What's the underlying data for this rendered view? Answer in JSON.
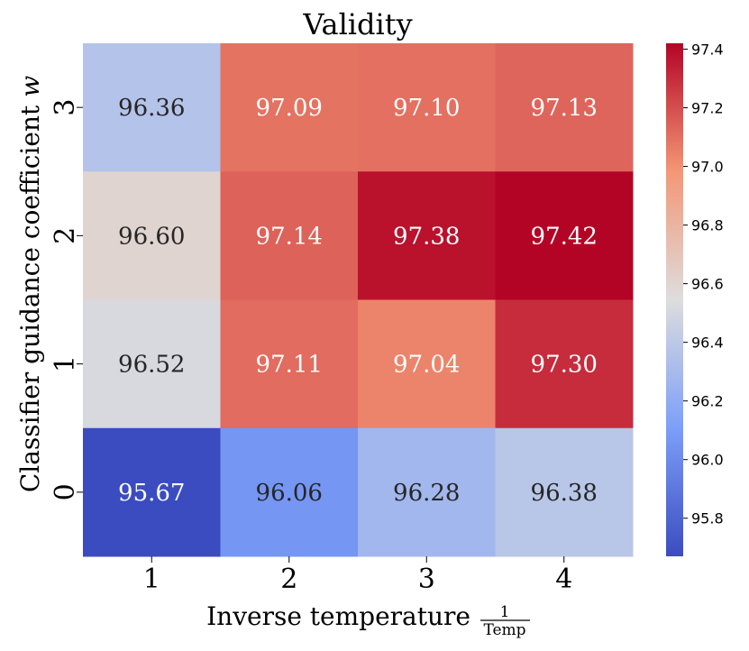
{
  "chart_data": {
    "type": "heatmap",
    "title": "Validity",
    "xlabel": "Inverse temperature",
    "xlabel_fraction": {
      "numerator": "1",
      "denominator": "Temp"
    },
    "ylabel": "Classifier guidance coefficient",
    "ylabel_symbol": "w",
    "x_categories": [
      "1",
      "2",
      "3",
      "4"
    ],
    "y_categories": [
      "3",
      "2",
      "1",
      "0"
    ],
    "values": [
      [
        96.36,
        97.09,
        97.1,
        97.13
      ],
      [
        96.6,
        97.14,
        97.38,
        97.42
      ],
      [
        96.52,
        97.11,
        97.04,
        97.3
      ],
      [
        95.67,
        96.06,
        96.28,
        96.38
      ]
    ],
    "colormap": "coolwarm",
    "colorbar": {
      "range": [
        95.67,
        97.42
      ],
      "ticks": [
        95.8,
        96.0,
        96.2,
        96.4,
        96.6,
        96.8,
        97.0,
        97.2,
        97.4
      ]
    }
  },
  "colors": {
    "low": "#3b4cc0",
    "mid": "#dddddd",
    "high": "#b40426",
    "text_dark": "#262626",
    "text_light": "#ffffff"
  }
}
